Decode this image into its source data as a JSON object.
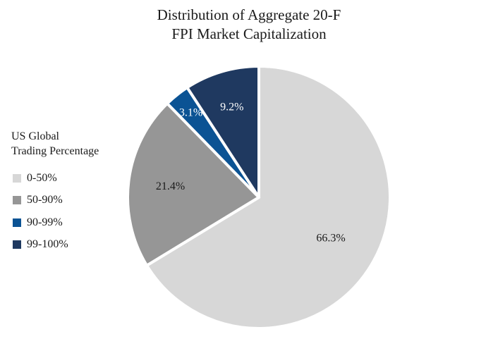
{
  "chart_data": {
    "type": "pie",
    "title": "Distribution of Aggregate 20-F FPI Market Capitalization",
    "title_lines": [
      "Distribution of Aggregate 20-F",
      "FPI Market Capitalization"
    ],
    "legend": {
      "title_lines": [
        "US Global",
        "Trading Percentage"
      ],
      "placement": "left"
    },
    "slices": [
      {
        "label": "0-50%",
        "value": 66.3,
        "value_label": "66.3%",
        "color": "#d7d7d7",
        "label_color": "#1a1a1a"
      },
      {
        "label": "50-90%",
        "value": 21.4,
        "value_label": "21.4%",
        "color": "#969696",
        "label_color": "#1a1a1a"
      },
      {
        "label": "90-99%",
        "value": 3.1,
        "value_label": "3.1%",
        "color": "#0b5394",
        "label_color": "#ffffff"
      },
      {
        "label": "99-100%",
        "value": 9.2,
        "value_label": "9.2%",
        "color": "#1f3960",
        "label_color": "#ffffff"
      }
    ]
  }
}
